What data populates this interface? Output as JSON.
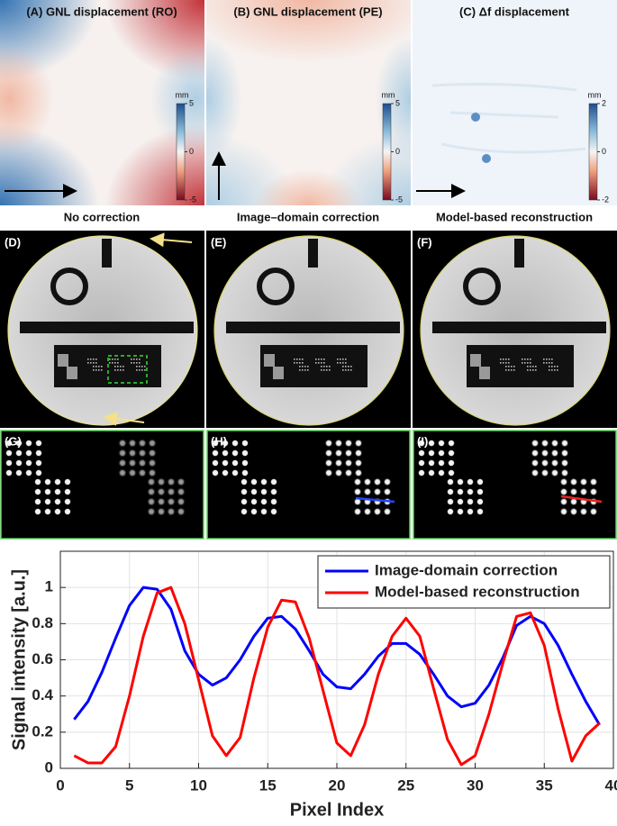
{
  "figure": {
    "top_panels": [
      {
        "title": "(A) GNL displacement (RO)",
        "unit": "mm",
        "ticks": [
          5,
          0,
          -5
        ]
      },
      {
        "title": "(B) GNL displacement (PE)",
        "unit": "mm",
        "ticks": [
          5,
          0,
          -5
        ]
      },
      {
        "title": "(C) Δf displacement",
        "unit": "mm",
        "ticks": [
          2,
          0,
          -2
        ]
      }
    ],
    "column_headers": [
      "No correction",
      "Image–domain correction",
      "Model-based reconstruction"
    ],
    "image_labels": [
      "(D)",
      "(E)",
      "(F)"
    ],
    "zoom_labels": [
      "(G)",
      "(H)",
      "(I)"
    ]
  },
  "chart_data": {
    "type": "line",
    "xlabel": "Pixel Index",
    "ylabel": "Signal intensity [a.u.]",
    "x": [
      1,
      2,
      3,
      4,
      5,
      6,
      7,
      8,
      9,
      10,
      11,
      12,
      13,
      14,
      15,
      16,
      17,
      18,
      19,
      20,
      21,
      22,
      23,
      24,
      25,
      26,
      27,
      28,
      29,
      30,
      31,
      32,
      33,
      34,
      35,
      36,
      37,
      38,
      39
    ],
    "series": [
      {
        "name": "Image-domain correction",
        "color": "#0000ff",
        "values": [
          0.27,
          0.37,
          0.53,
          0.72,
          0.9,
          1.0,
          0.99,
          0.88,
          0.65,
          0.52,
          0.46,
          0.5,
          0.6,
          0.73,
          0.83,
          0.84,
          0.77,
          0.65,
          0.52,
          0.45,
          0.44,
          0.52,
          0.62,
          0.69,
          0.69,
          0.63,
          0.52,
          0.4,
          0.34,
          0.36,
          0.46,
          0.61,
          0.79,
          0.84,
          0.8,
          0.68,
          0.52,
          0.37,
          0.24
        ]
      },
      {
        "name": "Model-based reconstruction",
        "color": "#ff0000",
        "values": [
          0.07,
          0.03,
          0.03,
          0.12,
          0.4,
          0.73,
          0.97,
          1.0,
          0.8,
          0.49,
          0.18,
          0.07,
          0.17,
          0.5,
          0.78,
          0.93,
          0.92,
          0.72,
          0.43,
          0.14,
          0.07,
          0.24,
          0.52,
          0.73,
          0.83,
          0.73,
          0.44,
          0.16,
          0.02,
          0.07,
          0.3,
          0.58,
          0.84,
          0.86,
          0.68,
          0.33,
          0.04,
          0.18,
          0.25
        ]
      }
    ],
    "xlim": [
      0,
      40
    ],
    "xticks": [
      0,
      5,
      10,
      15,
      20,
      25,
      30,
      35,
      40
    ],
    "ylim": [
      0,
      1.2
    ],
    "yticks": [
      0,
      0.2,
      0.4,
      0.6,
      0.8,
      1
    ],
    "grid": true,
    "legend": "upper right"
  }
}
